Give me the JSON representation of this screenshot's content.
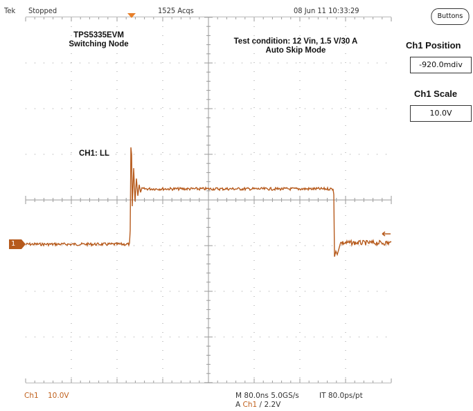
{
  "header": {
    "brand": "Tek",
    "status": "Stopped",
    "acquisitions": "1525 Acqs",
    "datetime": "08 Jun 11 10:33:29"
  },
  "annotations": {
    "device_line1": "TPS5335EVM",
    "device_line2": "Switching Node",
    "condition_line1": "Test condition: 12 Vin, 1.5 V/30 A",
    "condition_line2": "Auto Skip Mode",
    "channel_label": "CH1: LL"
  },
  "channel_marker": "1",
  "side_panel": {
    "menu_button": "Buttons",
    "position_title": "Ch1 Position",
    "position_value": "-920.0mdiv",
    "scale_title": "Ch1 Scale",
    "scale_value": "10.0V"
  },
  "footer": {
    "channel": "Ch1",
    "channel_scale": "10.0V",
    "timebase": "M 80.0ns 5.0GS/s",
    "record": "IT 80.0ps/pt",
    "trigger_prefix": "A",
    "trigger_source": "Ch1",
    "trigger_slope": "/",
    "trigger_level": "2.2V"
  },
  "colors": {
    "trace": "#b65a1c",
    "graticule": "#9a9a9a",
    "trigger_marker": "#e8802a"
  }
}
